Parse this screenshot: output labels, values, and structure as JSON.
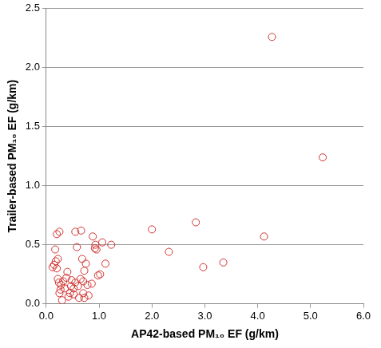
{
  "chart_data": {
    "type": "scatter",
    "x_label": "AP42-based PM₁₀ EF (g/km)",
    "y_label": "Trailer-based PM₁₀ EF (g/km)",
    "x": [
      4.27,
      5.23,
      2.0,
      2.83,
      2.32,
      2.97,
      3.35,
      4.12,
      1.23,
      1.06,
      1.12,
      1.02,
      0.98,
      0.88,
      0.93,
      0.92,
      0.95,
      0.86,
      0.75,
      0.72,
      0.7,
      0.66,
      0.55,
      0.58,
      0.68,
      0.7,
      0.72,
      0.6,
      0.65,
      0.62,
      0.55,
      0.52,
      0.48,
      0.45,
      0.42,
      0.4,
      0.38,
      0.35,
      0.32,
      0.3,
      0.28,
      0.25,
      0.2,
      0.22,
      0.18,
      0.17,
      0.15,
      0.12,
      0.2,
      0.22,
      0.25,
      0.27,
      0.24,
      0.52,
      0.8,
      0.78,
      0.47
    ],
    "values": [
      2.26,
      1.24,
      0.63,
      0.69,
      0.44,
      0.31,
      0.35,
      0.57,
      0.5,
      0.52,
      0.34,
      0.25,
      0.24,
      0.57,
      0.5,
      0.47,
      0.46,
      0.17,
      0.34,
      0.28,
      0.19,
      0.62,
      0.61,
      0.48,
      0.38,
      0.09,
      0.05,
      0.15,
      0.21,
      0.05,
      0.18,
      0.13,
      0.2,
      0.09,
      0.06,
      0.27,
      0.22,
      0.13,
      0.19,
      0.03,
      0.16,
      0.61,
      0.59,
      0.38,
      0.36,
      0.46,
      0.33,
      0.31,
      0.3,
      0.21,
      0.09,
      0.12,
      0.18,
      0.08,
      0.07,
      0.16,
      0.15
    ],
    "color": "#d0312d",
    "marker": "circle",
    "xlim": [
      0,
      6
    ],
    "xticks": [
      {
        "value": 0,
        "label": "0.0"
      },
      {
        "value": 1,
        "label": "1.0"
      },
      {
        "value": 2,
        "label": "2.0"
      },
      {
        "value": 3,
        "label": "3.0"
      },
      {
        "value": 4,
        "label": "4.0"
      },
      {
        "value": 5,
        "label": "5.0"
      },
      {
        "value": 6,
        "label": "6.0"
      }
    ],
    "ylim": [
      0,
      2.5
    ],
    "yticks": [
      {
        "value": 0,
        "label": "0.0"
      },
      {
        "value": 0.5,
        "label": "0.5"
      },
      {
        "value": 1,
        "label": "1.0"
      },
      {
        "value": 1.5,
        "label": "1.5"
      },
      {
        "value": 2,
        "label": "2.0"
      },
      {
        "value": 2.5,
        "label": "2.5"
      }
    ],
    "grid": "y"
  }
}
